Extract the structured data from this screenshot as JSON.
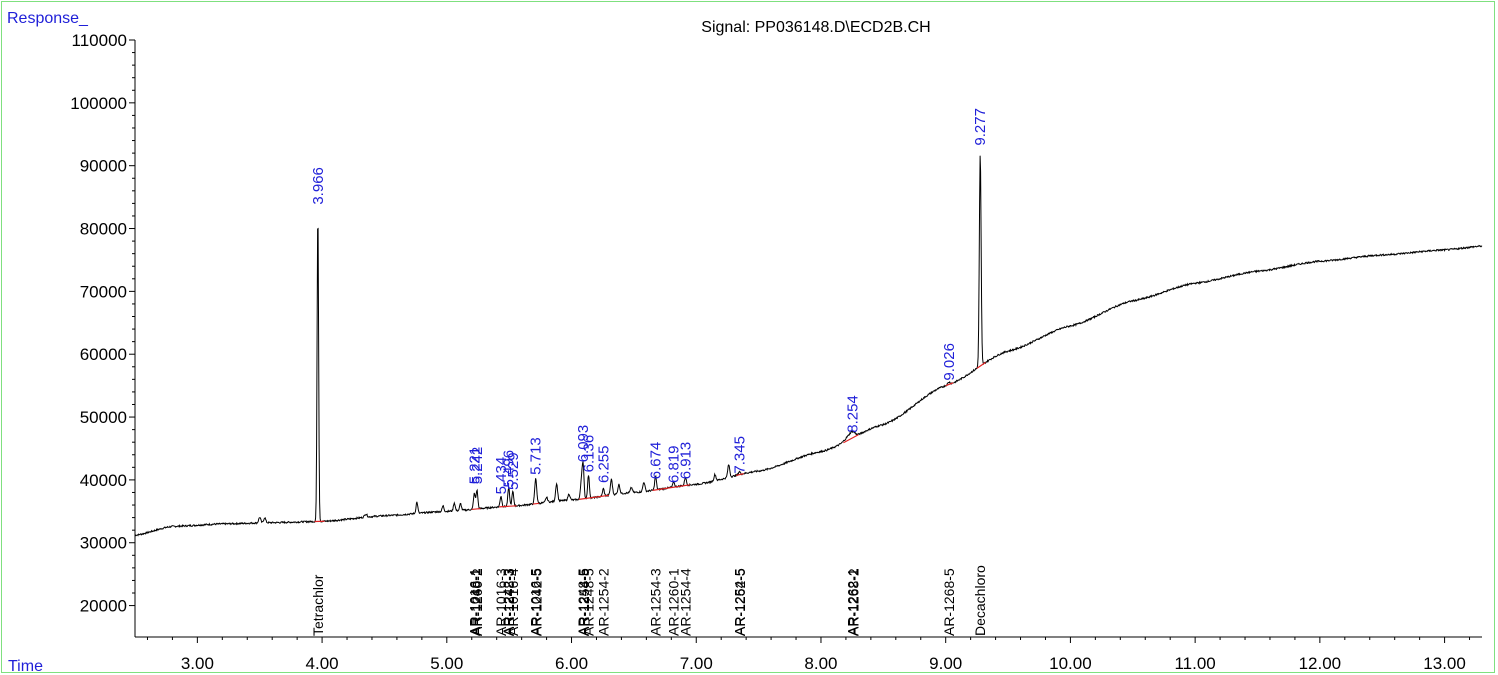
{
  "chart_data": {
    "type": "line",
    "title": "Signal: PP036148.D\\ECD2B.CH",
    "ylabel": "Response_",
    "xlabel": "Time",
    "xlim": [
      2.5,
      13.3
    ],
    "ylim": [
      15000,
      110000
    ],
    "x_ticks": [
      "3.00",
      "4.00",
      "5.00",
      "6.00",
      "7.00",
      "8.00",
      "9.00",
      "10.00",
      "11.00",
      "12.00",
      "13.00"
    ],
    "y_ticks": [
      "20000",
      "30000",
      "40000",
      "50000",
      "60000",
      "70000",
      "80000",
      "90000",
      "100000",
      "110000"
    ],
    "grid": false,
    "colors": {
      "trace": "#000000",
      "peak_label": "#1f1fd8",
      "baseline_mark": "#e02020",
      "frame": "#7fe07f",
      "axis_label": "#1f1fd8"
    },
    "baseline": [
      {
        "x": 2.5,
        "y": 31200
      },
      {
        "x": 2.8,
        "y": 32600
      },
      {
        "x": 3.2,
        "y": 33000
      },
      {
        "x": 3.6,
        "y": 33200
      },
      {
        "x": 4.0,
        "y": 33400
      },
      {
        "x": 4.5,
        "y": 34300
      },
      {
        "x": 5.0,
        "y": 35000
      },
      {
        "x": 5.5,
        "y": 35800
      },
      {
        "x": 6.0,
        "y": 36800
      },
      {
        "x": 6.5,
        "y": 38000
      },
      {
        "x": 7.0,
        "y": 39300
      },
      {
        "x": 7.5,
        "y": 41400
      },
      {
        "x": 8.0,
        "y": 44500
      },
      {
        "x": 8.5,
        "y": 48800
      },
      {
        "x": 9.0,
        "y": 55000
      },
      {
        "x": 9.5,
        "y": 60500
      },
      {
        "x": 10.0,
        "y": 64500
      },
      {
        "x": 10.5,
        "y": 68500
      },
      {
        "x": 11.0,
        "y": 71300
      },
      {
        "x": 11.5,
        "y": 73200
      },
      {
        "x": 12.0,
        "y": 74800
      },
      {
        "x": 12.5,
        "y": 75800
      },
      {
        "x": 13.0,
        "y": 76600
      },
      {
        "x": 13.3,
        "y": 77200
      }
    ],
    "peaks": [
      {
        "x": 3.5,
        "h": 900,
        "w": 0.008
      },
      {
        "x": 3.54,
        "h": 800,
        "w": 0.008
      },
      {
        "x": 3.966,
        "h": 49300,
        "w": 0.006
      },
      {
        "x": 4.35,
        "h": 500,
        "w": 0.01
      },
      {
        "x": 4.76,
        "h": 1800,
        "w": 0.007
      },
      {
        "x": 4.97,
        "h": 900,
        "w": 0.007
      },
      {
        "x": 5.06,
        "h": 1300,
        "w": 0.007
      },
      {
        "x": 5.11,
        "h": 1100,
        "w": 0.007
      },
      {
        "x": 5.221,
        "h": 2500,
        "w": 0.007
      },
      {
        "x": 5.242,
        "h": 3000,
        "w": 0.007
      },
      {
        "x": 5.434,
        "h": 1700,
        "w": 0.007
      },
      {
        "x": 5.496,
        "h": 3000,
        "w": 0.007
      },
      {
        "x": 5.529,
        "h": 2300,
        "w": 0.007
      },
      {
        "x": 5.713,
        "h": 4000,
        "w": 0.008
      },
      {
        "x": 5.8,
        "h": 800,
        "w": 0.008
      },
      {
        "x": 5.88,
        "h": 2800,
        "w": 0.008
      },
      {
        "x": 5.98,
        "h": 1000,
        "w": 0.008
      },
      {
        "x": 6.08,
        "h": 3000,
        "w": 0.008
      },
      {
        "x": 6.093,
        "h": 5000,
        "w": 0.007
      },
      {
        "x": 6.136,
        "h": 3700,
        "w": 0.007
      },
      {
        "x": 6.255,
        "h": 1200,
        "w": 0.007
      },
      {
        "x": 6.32,
        "h": 2500,
        "w": 0.008
      },
      {
        "x": 6.38,
        "h": 1500,
        "w": 0.008
      },
      {
        "x": 6.48,
        "h": 800,
        "w": 0.008
      },
      {
        "x": 6.58,
        "h": 1500,
        "w": 0.008
      },
      {
        "x": 6.674,
        "h": 2200,
        "w": 0.007
      },
      {
        "x": 6.819,
        "h": 800,
        "w": 0.007
      },
      {
        "x": 6.913,
        "h": 1300,
        "w": 0.007
      },
      {
        "x": 7.15,
        "h": 1000,
        "w": 0.008
      },
      {
        "x": 7.26,
        "h": 2000,
        "w": 0.008
      },
      {
        "x": 7.345,
        "h": 500,
        "w": 0.007
      },
      {
        "x": 8.22,
        "h": 600,
        "w": 0.03
      },
      {
        "x": 8.254,
        "h": 700,
        "w": 0.02
      },
      {
        "x": 9.026,
        "h": 400,
        "w": 0.01
      },
      {
        "x": 9.277,
        "h": 33800,
        "w": 0.007
      }
    ],
    "peak_labels": [
      {
        "x": 3.966,
        "text": "3.966",
        "y": 83800
      },
      {
        "x": 5.221,
        "text": "5.221",
        "y": 39300
      },
      {
        "x": 5.242,
        "text": "5.242",
        "y": 39300
      },
      {
        "x": 5.434,
        "text": "5.434",
        "y": 37700
      },
      {
        "x": 5.496,
        "text": "5.496",
        "y": 38800
      },
      {
        "x": 5.529,
        "text": "5.529",
        "y": 38400
      },
      {
        "x": 5.713,
        "text": "5.713",
        "y": 40800
      },
      {
        "x": 6.093,
        "text": "6.093",
        "y": 42800
      },
      {
        "x": 6.136,
        "text": "6.136",
        "y": 41200
      },
      {
        "x": 6.255,
        "text": "6.255",
        "y": 39500
      },
      {
        "x": 6.674,
        "text": "6.674",
        "y": 40100
      },
      {
        "x": 6.819,
        "text": "6.819",
        "y": 39500
      },
      {
        "x": 6.913,
        "text": "6.913",
        "y": 40100
      },
      {
        "x": 7.345,
        "text": "7.345",
        "y": 41000
      },
      {
        "x": 8.254,
        "text": "8.254",
        "y": 47500
      },
      {
        "x": 9.026,
        "text": "9.026",
        "y": 55800
      },
      {
        "x": 9.277,
        "text": "9.277",
        "y": 93200
      }
    ],
    "compound_labels": [
      {
        "x": 3.966,
        "text": "Tetrachlor"
      },
      {
        "x": 5.221,
        "text": "AR-1016-1"
      },
      {
        "x": 5.232,
        "text": "AR-1248-1"
      },
      {
        "x": 5.242,
        "text": "AR-1260-2"
      },
      {
        "x": 5.434,
        "text": "AR-1016-3"
      },
      {
        "x": 5.49,
        "text": "AR-1242-3"
      },
      {
        "x": 5.5,
        "text": "AR-1248-3"
      },
      {
        "x": 5.529,
        "text": "AR-1016-4"
      },
      {
        "x": 5.713,
        "text": "AR-1016-5"
      },
      {
        "x": 5.72,
        "text": "AR-1242-5"
      },
      {
        "x": 6.093,
        "text": "AR-1248-5"
      },
      {
        "x": 6.1,
        "text": "AR-1254-5"
      },
      {
        "x": 6.136,
        "text": "AR-1248-5"
      },
      {
        "x": 6.255,
        "text": "AR-1254-2"
      },
      {
        "x": 6.674,
        "text": "AR-1254-3"
      },
      {
        "x": 6.819,
        "text": "AR-1260-1"
      },
      {
        "x": 6.913,
        "text": "AR-1254-4"
      },
      {
        "x": 7.345,
        "text": "AR-1254-5"
      },
      {
        "x": 7.35,
        "text": "AR-1262-5"
      },
      {
        "x": 8.254,
        "text": "AR-1262-1"
      },
      {
        "x": 8.26,
        "text": "AR-1268-2"
      },
      {
        "x": 9.026,
        "text": "AR-1268-5"
      },
      {
        "x": 9.277,
        "text": "Decachloro"
      }
    ],
    "baseline_marks": [
      {
        "x0": 3.94,
        "x1": 4.02
      },
      {
        "x0": 5.2,
        "x1": 5.27
      },
      {
        "x0": 5.42,
        "x1": 5.56
      },
      {
        "x0": 5.69,
        "x1": 5.74
      },
      {
        "x0": 6.06,
        "x1": 6.3
      },
      {
        "x0": 6.65,
        "x1": 6.95
      },
      {
        "x0": 7.32,
        "x1": 7.38
      },
      {
        "x0": 8.18,
        "x1": 8.3
      },
      {
        "x0": 9.0,
        "x1": 9.06
      },
      {
        "x0": 9.25,
        "x1": 9.32
      }
    ]
  }
}
